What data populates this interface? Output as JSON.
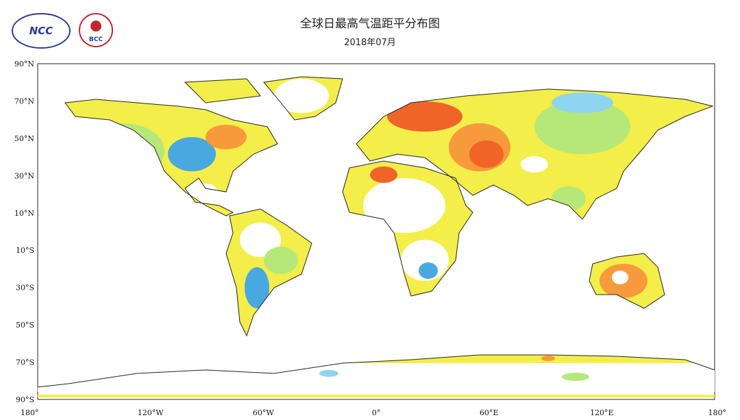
{
  "header": {
    "title": "全球日最高气温距平分布图",
    "subtitle": "2018年07月",
    "logos": [
      "NCC",
      "BCC"
    ]
  },
  "map": {
    "lat_labels": [
      "90°N",
      "70°N",
      "50°N",
      "30°N",
      "10°N",
      "10°S",
      "30°S",
      "50°S",
      "70°S",
      "90°S"
    ],
    "lon_labels": [
      "180°",
      "120°W",
      "60°W",
      "0°",
      "60°E",
      "120°E",
      "180°"
    ]
  }
}
